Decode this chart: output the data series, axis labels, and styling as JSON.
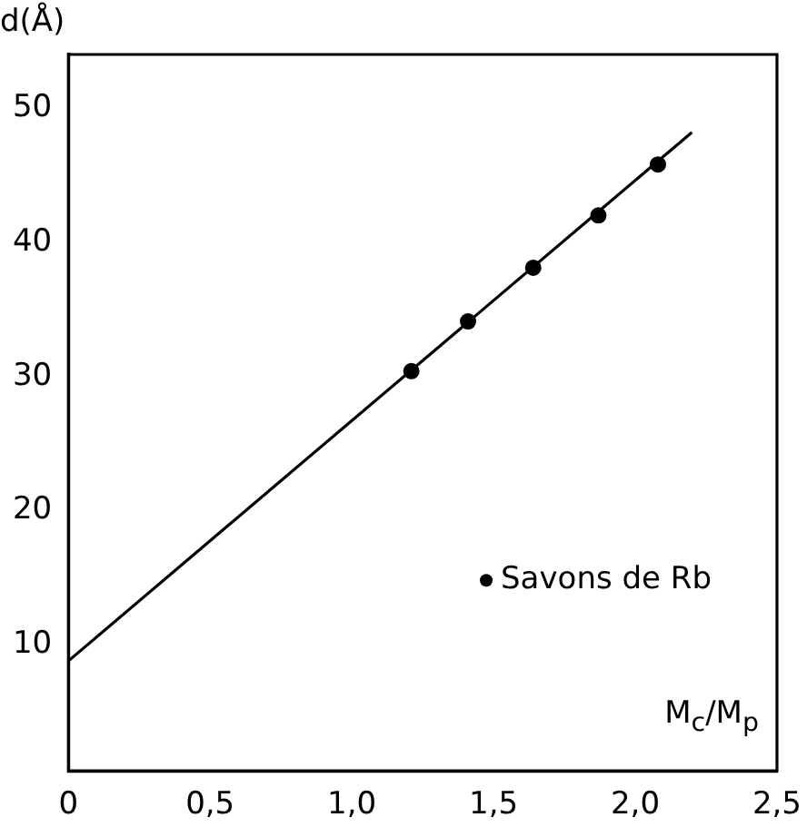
{
  "chart_data": {
    "type": "scatter",
    "xlabel": "M$_{c}$/M$_{p}$",
    "ylabel": "d(Å)",
    "xlim": [
      0,
      2.5
    ],
    "ylim": [
      0.6,
      54
    ],
    "xticks": [
      0,
      {
        "value": 0.5,
        "label": "0,5"
      },
      {
        "value": 1,
        "label": "1,0"
      },
      {
        "value": 1.5,
        "label": "1,5"
      },
      {
        "value": 2,
        "label": "2,0"
      },
      {
        "value": 2.5,
        "label": "2,5"
      }
    ],
    "yticks": [
      10,
      20,
      30,
      40,
      50
    ],
    "grid": false,
    "legend": "bottom right",
    "marker": "circle",
    "series": [
      {
        "name": "Savons de Rb",
        "color": "#000000",
        "x": [
          1.21,
          1.41,
          1.64,
          1.87,
          2.08
        ],
        "values": [
          30.4,
          34.1,
          38.1,
          42.0,
          45.8
        ]
      },
      {
        "type": "line",
        "color": "#000000",
        "x": [
          0,
          2.2
        ],
        "values": [
          8.8,
          48.2
        ],
        "marker": "none"
      }
    ]
  }
}
